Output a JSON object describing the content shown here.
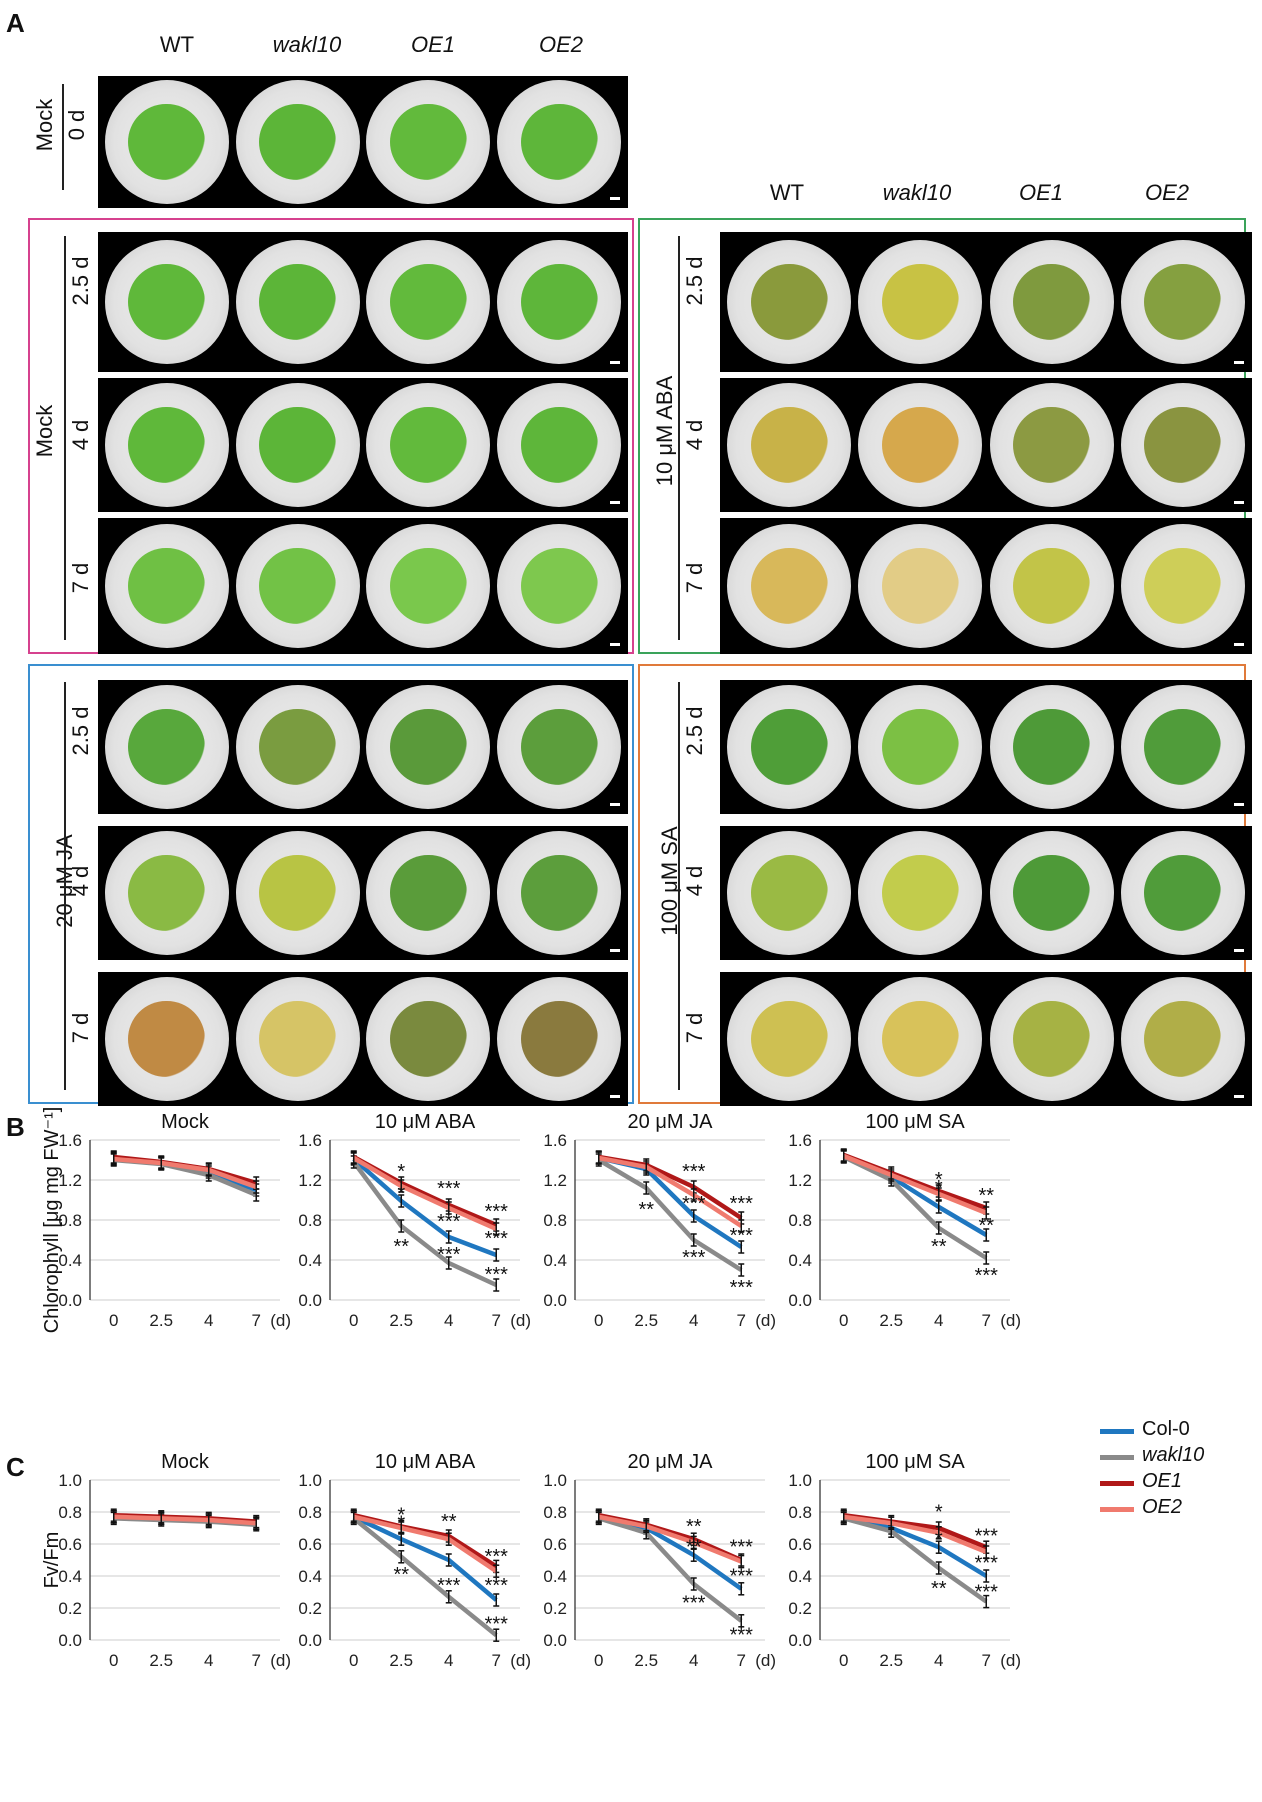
{
  "panel_labels": {
    "A": "A",
    "B": "B",
    "C": "C"
  },
  "genotypes": {
    "wt": "WT",
    "wakl10": "wakl10",
    "oe1": "OE1",
    "oe2": "OE2"
  },
  "mock_top": {
    "treatment": "Mock",
    "time": "0 d"
  },
  "mock_box": {
    "treatment": "Mock",
    "times": [
      "2.5 d",
      "4 d",
      "7 d"
    ],
    "color": "#d6418e"
  },
  "aba_box": {
    "treatment": "10 μM ABA",
    "times": [
      "2.5 d",
      "4 d",
      "7 d"
    ],
    "color": "#3aa35a"
  },
  "ja_box": {
    "treatment": "20 μM JA",
    "times": [
      "2.5 d",
      "4 d",
      "7 d"
    ],
    "color": "#3a8fd0"
  },
  "sa_box": {
    "treatment": "100 μM SA",
    "times": [
      "2.5 d",
      "4 d",
      "7 d"
    ],
    "color": "#e07a3a"
  },
  "legend": [
    {
      "name": "Col-0",
      "color": "#1f77c0",
      "italic": false
    },
    {
      "name": "wakl10",
      "color": "#8a8a8a",
      "italic": true
    },
    {
      "name": "OE1",
      "color": "#b01818",
      "italic": true
    },
    {
      "name": "OE2",
      "color": "#f07a6e",
      "italic": true
    }
  ],
  "chart_data": [
    {
      "type": "line",
      "panel": "B",
      "title": "Mock",
      "ylabel": "Chlorophyll [μg mg FW⁻¹]",
      "ylim": [
        0,
        1.6
      ],
      "yticks": [
        "0.0",
        "0.4",
        "0.8",
        "1.2",
        "1.6"
      ],
      "categories": [
        "0",
        "2.5",
        "4",
        "7"
      ],
      "x_unit": "(d)",
      "series": [
        {
          "name": "Col-0",
          "values": [
            1.42,
            1.37,
            1.28,
            1.1
          ]
        },
        {
          "name": "wakl10",
          "values": [
            1.4,
            1.36,
            1.25,
            1.05
          ]
        },
        {
          "name": "OE1",
          "values": [
            1.43,
            1.38,
            1.31,
            1.17
          ]
        },
        {
          "name": "OE2",
          "values": [
            1.41,
            1.37,
            1.3,
            1.13
          ]
        }
      ],
      "annotations": []
    },
    {
      "type": "line",
      "panel": "B",
      "title": "10 μM ABA",
      "ylim": [
        0,
        1.6
      ],
      "yticks": [
        "0.0",
        "0.4",
        "0.8",
        "1.2",
        "1.6"
      ],
      "categories": [
        "0",
        "2.5",
        "4",
        "7"
      ],
      "x_unit": "(d)",
      "series": [
        {
          "name": "Col-0",
          "values": [
            1.41,
            0.99,
            0.63,
            0.45
          ]
        },
        {
          "name": "wakl10",
          "values": [
            1.38,
            0.74,
            0.37,
            0.15
          ]
        },
        {
          "name": "OE1",
          "values": [
            1.43,
            1.17,
            0.95,
            0.75
          ]
        },
        {
          "name": "OE2",
          "values": [
            1.42,
            1.14,
            0.92,
            0.71
          ]
        }
      ],
      "annotations": [
        {
          "text": "*",
          "x": "2.5",
          "y": 1.3
        },
        {
          "text": "*",
          "x": "2.5",
          "y": 1.08
        },
        {
          "text": "***",
          "x": "4",
          "y": 1.13
        },
        {
          "text": "***",
          "x": "4",
          "y": 0.8
        },
        {
          "text": "***",
          "x": "7",
          "y": 0.9
        },
        {
          "text": "***",
          "x": "7",
          "y": 0.63
        },
        {
          "text": "**",
          "x": "2.5",
          "y": 0.55
        },
        {
          "text": "***",
          "x": "4",
          "y": 0.47
        },
        {
          "text": "***",
          "x": "7",
          "y": 0.27
        }
      ]
    },
    {
      "type": "line",
      "panel": "B",
      "title": "20 μM JA",
      "ylim": [
        0,
        1.6
      ],
      "yticks": [
        "0.0",
        "0.4",
        "0.8",
        "1.2",
        "1.6"
      ],
      "categories": [
        "0",
        "2.5",
        "4",
        "7"
      ],
      "x_unit": "(d)",
      "series": [
        {
          "name": "Col-0",
          "values": [
            1.42,
            1.31,
            0.84,
            0.53
          ]
        },
        {
          "name": "wakl10",
          "values": [
            1.4,
            1.12,
            0.6,
            0.3
          ]
        },
        {
          "name": "OE1",
          "values": [
            1.43,
            1.35,
            1.13,
            0.82
          ]
        },
        {
          "name": "OE2",
          "values": [
            1.42,
            1.33,
            1.05,
            0.74
          ]
        }
      ],
      "annotations": [
        {
          "text": "***",
          "x": "4",
          "y": 1.3
        },
        {
          "text": "***",
          "x": "4",
          "y": 0.98
        },
        {
          "text": "***",
          "x": "7",
          "y": 0.98
        },
        {
          "text": "**",
          "x": "2.5",
          "y": 0.92
        },
        {
          "text": "***",
          "x": "7",
          "y": 0.66
        },
        {
          "text": "***",
          "x": "4",
          "y": 0.44
        },
        {
          "text": "***",
          "x": "7",
          "y": 0.14
        }
      ]
    },
    {
      "type": "line",
      "panel": "B",
      "title": "100 μM SA",
      "ylim": [
        0,
        1.6
      ],
      "yticks": [
        "0.0",
        "0.4",
        "0.8",
        "1.2",
        "1.6"
      ],
      "categories": [
        "0",
        "2.5",
        "4",
        "7"
      ],
      "x_unit": "(d)",
      "series": [
        {
          "name": "Col-0",
          "values": [
            1.44,
            1.23,
            0.93,
            0.65
          ]
        },
        {
          "name": "wakl10",
          "values": [
            1.43,
            1.2,
            0.72,
            0.42
          ]
        },
        {
          "name": "OE1",
          "values": [
            1.45,
            1.27,
            1.09,
            0.92
          ]
        },
        {
          "name": "OE2",
          "values": [
            1.44,
            1.25,
            1.06,
            0.87
          ]
        }
      ],
      "annotations": [
        {
          "text": "*",
          "x": "4",
          "y": 1.22
        },
        {
          "text": "*",
          "x": "4",
          "y": 1.14
        },
        {
          "text": "**",
          "x": "7",
          "y": 1.06
        },
        {
          "text": "**",
          "x": "7",
          "y": 0.76
        },
        {
          "text": "**",
          "x": "4",
          "y": 0.55
        },
        {
          "text": "***",
          "x": "7",
          "y": 0.26
        }
      ]
    },
    {
      "type": "line",
      "panel": "C",
      "title": "Mock",
      "ylabel": "Fv/Fm",
      "ylim": [
        0,
        1.0
      ],
      "yticks": [
        "0.0",
        "0.2",
        "0.4",
        "0.6",
        "0.8",
        "1.0"
      ],
      "categories": [
        "0",
        "2.5",
        "4",
        "7"
      ],
      "x_unit": "(d)",
      "series": [
        {
          "name": "Col-0",
          "values": [
            0.77,
            0.76,
            0.75,
            0.73
          ]
        },
        {
          "name": "wakl10",
          "values": [
            0.76,
            0.75,
            0.74,
            0.72
          ]
        },
        {
          "name": "OE1",
          "values": [
            0.78,
            0.77,
            0.76,
            0.74
          ]
        },
        {
          "name": "OE2",
          "values": [
            0.77,
            0.76,
            0.75,
            0.73
          ]
        }
      ],
      "annotations": []
    },
    {
      "type": "line",
      "panel": "C",
      "title": "10 μM ABA",
      "ylim": [
        0,
        1.0
      ],
      "yticks": [
        "0.0",
        "0.2",
        "0.4",
        "0.6",
        "0.8",
        "1.0"
      ],
      "categories": [
        "0",
        "2.5",
        "4",
        "7"
      ],
      "x_unit": "(d)",
      "series": [
        {
          "name": "Col-0",
          "values": [
            0.77,
            0.63,
            0.5,
            0.25
          ]
        },
        {
          "name": "wakl10",
          "values": [
            0.76,
            0.52,
            0.27,
            0.03
          ]
        },
        {
          "name": "OE1",
          "values": [
            0.78,
            0.71,
            0.65,
            0.46
          ]
        },
        {
          "name": "OE2",
          "values": [
            0.77,
            0.7,
            0.63,
            0.43
          ]
        }
      ],
      "annotations": [
        {
          "text": "*",
          "x": "2.5",
          "y": 0.79
        },
        {
          "text": "*",
          "x": "2.5",
          "y": 0.74
        },
        {
          "text": "**",
          "x": "4",
          "y": 0.75
        },
        {
          "text": "***",
          "x": "7",
          "y": 0.53
        },
        {
          "text": "***",
          "x": "7",
          "y": 0.35
        },
        {
          "text": "**",
          "x": "2.5",
          "y": 0.42
        },
        {
          "text": "***",
          "x": "4",
          "y": 0.35
        },
        {
          "text": "***",
          "x": "7",
          "y": 0.11
        }
      ]
    },
    {
      "type": "line",
      "panel": "C",
      "title": "20 μM JA",
      "ylim": [
        0,
        1.0
      ],
      "yticks": [
        "0.0",
        "0.2",
        "0.4",
        "0.6",
        "0.8",
        "1.0"
      ],
      "categories": [
        "0",
        "2.5",
        "4",
        "7"
      ],
      "x_unit": "(d)",
      "series": [
        {
          "name": "Col-0",
          "values": [
            0.77,
            0.7,
            0.53,
            0.32
          ]
        },
        {
          "name": "wakl10",
          "values": [
            0.76,
            0.67,
            0.35,
            0.12
          ]
        },
        {
          "name": "OE1",
          "values": [
            0.78,
            0.72,
            0.63,
            0.5
          ]
        },
        {
          "name": "OE2",
          "values": [
            0.77,
            0.71,
            0.61,
            0.49
          ]
        }
      ],
      "annotations": [
        {
          "text": "**",
          "x": "4",
          "y": 0.72
        },
        {
          "text": "**",
          "x": "4",
          "y": 0.59
        },
        {
          "text": "***",
          "x": "7",
          "y": 0.59
        },
        {
          "text": "***",
          "x": "7",
          "y": 0.41
        },
        {
          "text": "***",
          "x": "4",
          "y": 0.24
        },
        {
          "text": "***",
          "x": "7",
          "y": 0.04
        }
      ]
    },
    {
      "type": "line",
      "panel": "C",
      "title": "100 μM SA",
      "ylim": [
        0,
        1.0
      ],
      "yticks": [
        "0.0",
        "0.2",
        "0.4",
        "0.6",
        "0.8",
        "1.0"
      ],
      "categories": [
        "0",
        "2.5",
        "4",
        "7"
      ],
      "x_unit": "(d)",
      "series": [
        {
          "name": "Col-0",
          "values": [
            0.77,
            0.7,
            0.58,
            0.4
          ]
        },
        {
          "name": "wakl10",
          "values": [
            0.76,
            0.68,
            0.45,
            0.24
          ]
        },
        {
          "name": "OE1",
          "values": [
            0.78,
            0.74,
            0.7,
            0.58
          ]
        },
        {
          "name": "OE2",
          "values": [
            0.77,
            0.73,
            0.67,
            0.55
          ]
        }
      ],
      "annotations": [
        {
          "text": "*",
          "x": "4",
          "y": 0.81
        },
        {
          "text": "*",
          "x": "4",
          "y": 0.64
        },
        {
          "text": "***",
          "x": "7",
          "y": 0.66
        },
        {
          "text": "***",
          "x": "7",
          "y": 0.49
        },
        {
          "text": "**",
          "x": "4",
          "y": 0.33
        },
        {
          "text": "***",
          "x": "7",
          "y": 0.31
        }
      ]
    }
  ]
}
